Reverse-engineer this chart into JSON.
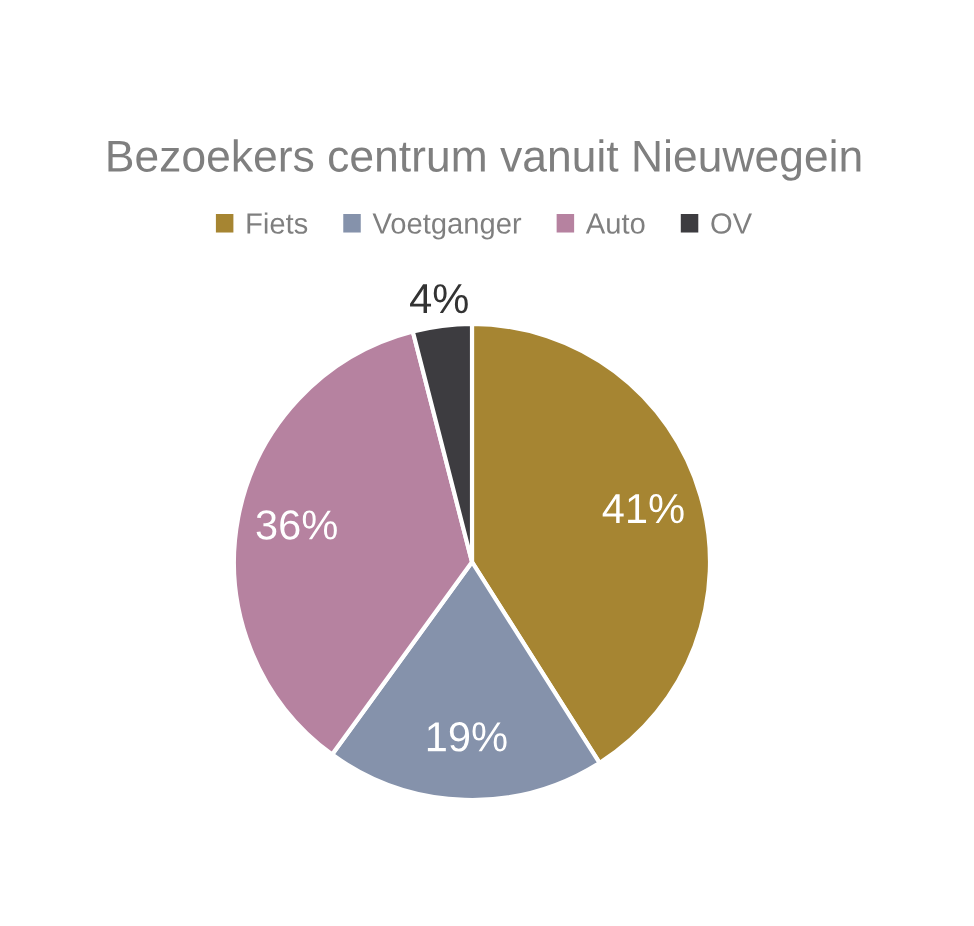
{
  "chart_data": {
    "type": "pie",
    "title": "Bezoekers centrum vanuit Nieuwegein",
    "categories": [
      "Fiets",
      "Voetganger",
      "Auto",
      "OV"
    ],
    "values": [
      41,
      19,
      36,
      4
    ],
    "colors": [
      "#a68532",
      "#8592ab",
      "#b682a0",
      "#3d3c40"
    ],
    "value_labels": [
      "41%",
      "19%",
      "36%",
      "4%"
    ],
    "legend": "top"
  }
}
